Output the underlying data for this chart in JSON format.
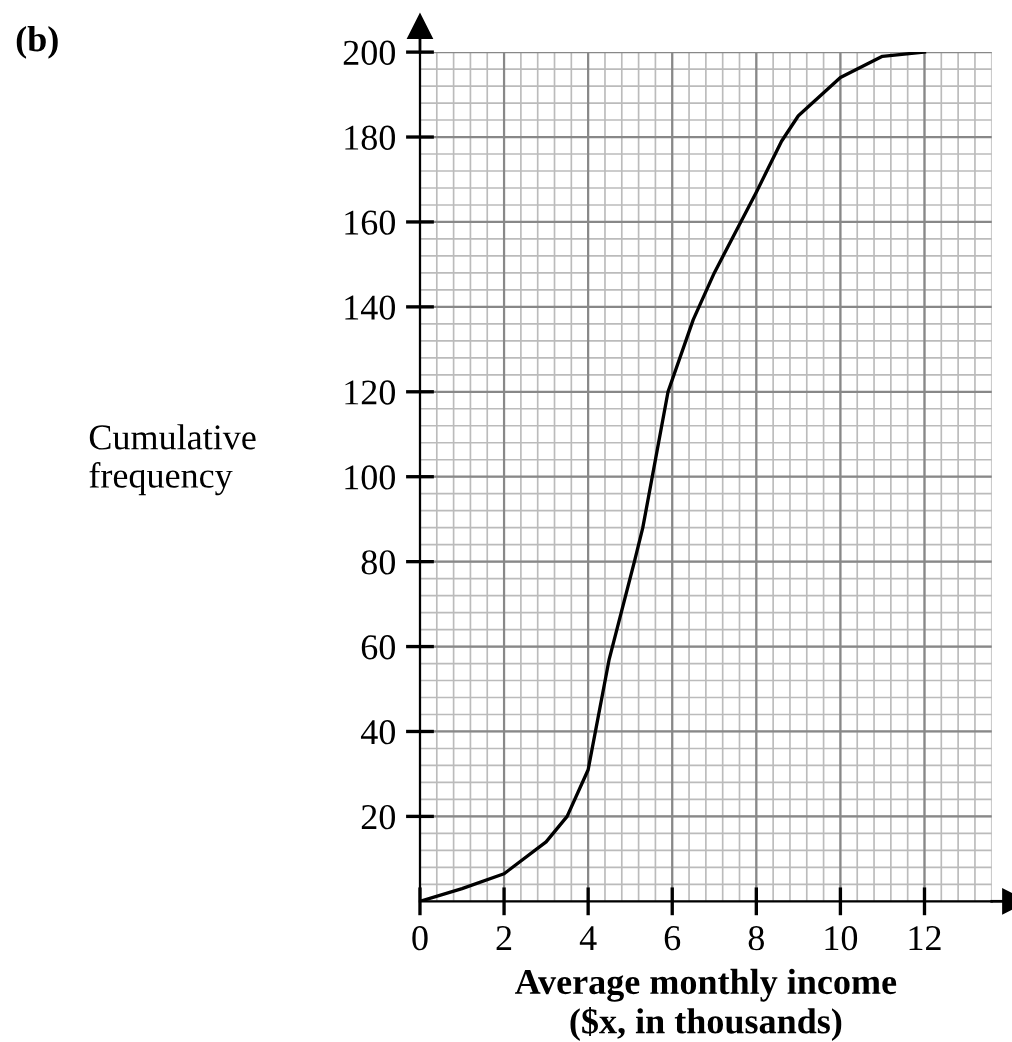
{
  "chart_data": {
    "type": "line",
    "title": "(b)",
    "xlabel": "Average monthly income\n($x, in thousands)",
    "ylabel": "Cumulative\nfrequency",
    "x": [
      0,
      1,
      2,
      3,
      3.5,
      4,
      4.5,
      5.1,
      5.3,
      5.9,
      6.5,
      7,
      8,
      8.6,
      9,
      10,
      11,
      12
    ],
    "values": [
      0,
      3,
      6.5,
      14,
      20,
      31,
      57,
      80,
      88,
      120,
      137,
      148,
      167,
      179,
      185,
      194,
      199,
      200
    ],
    "color": "#000000",
    "xlim": [
      0,
      13.6
    ],
    "ylim": [
      0,
      200
    ],
    "xticks": [
      0,
      2,
      4,
      6,
      8,
      10,
      12
    ],
    "yticks": [
      20,
      40,
      60,
      80,
      100,
      120,
      140,
      160,
      180,
      200
    ],
    "grid": true
  }
}
